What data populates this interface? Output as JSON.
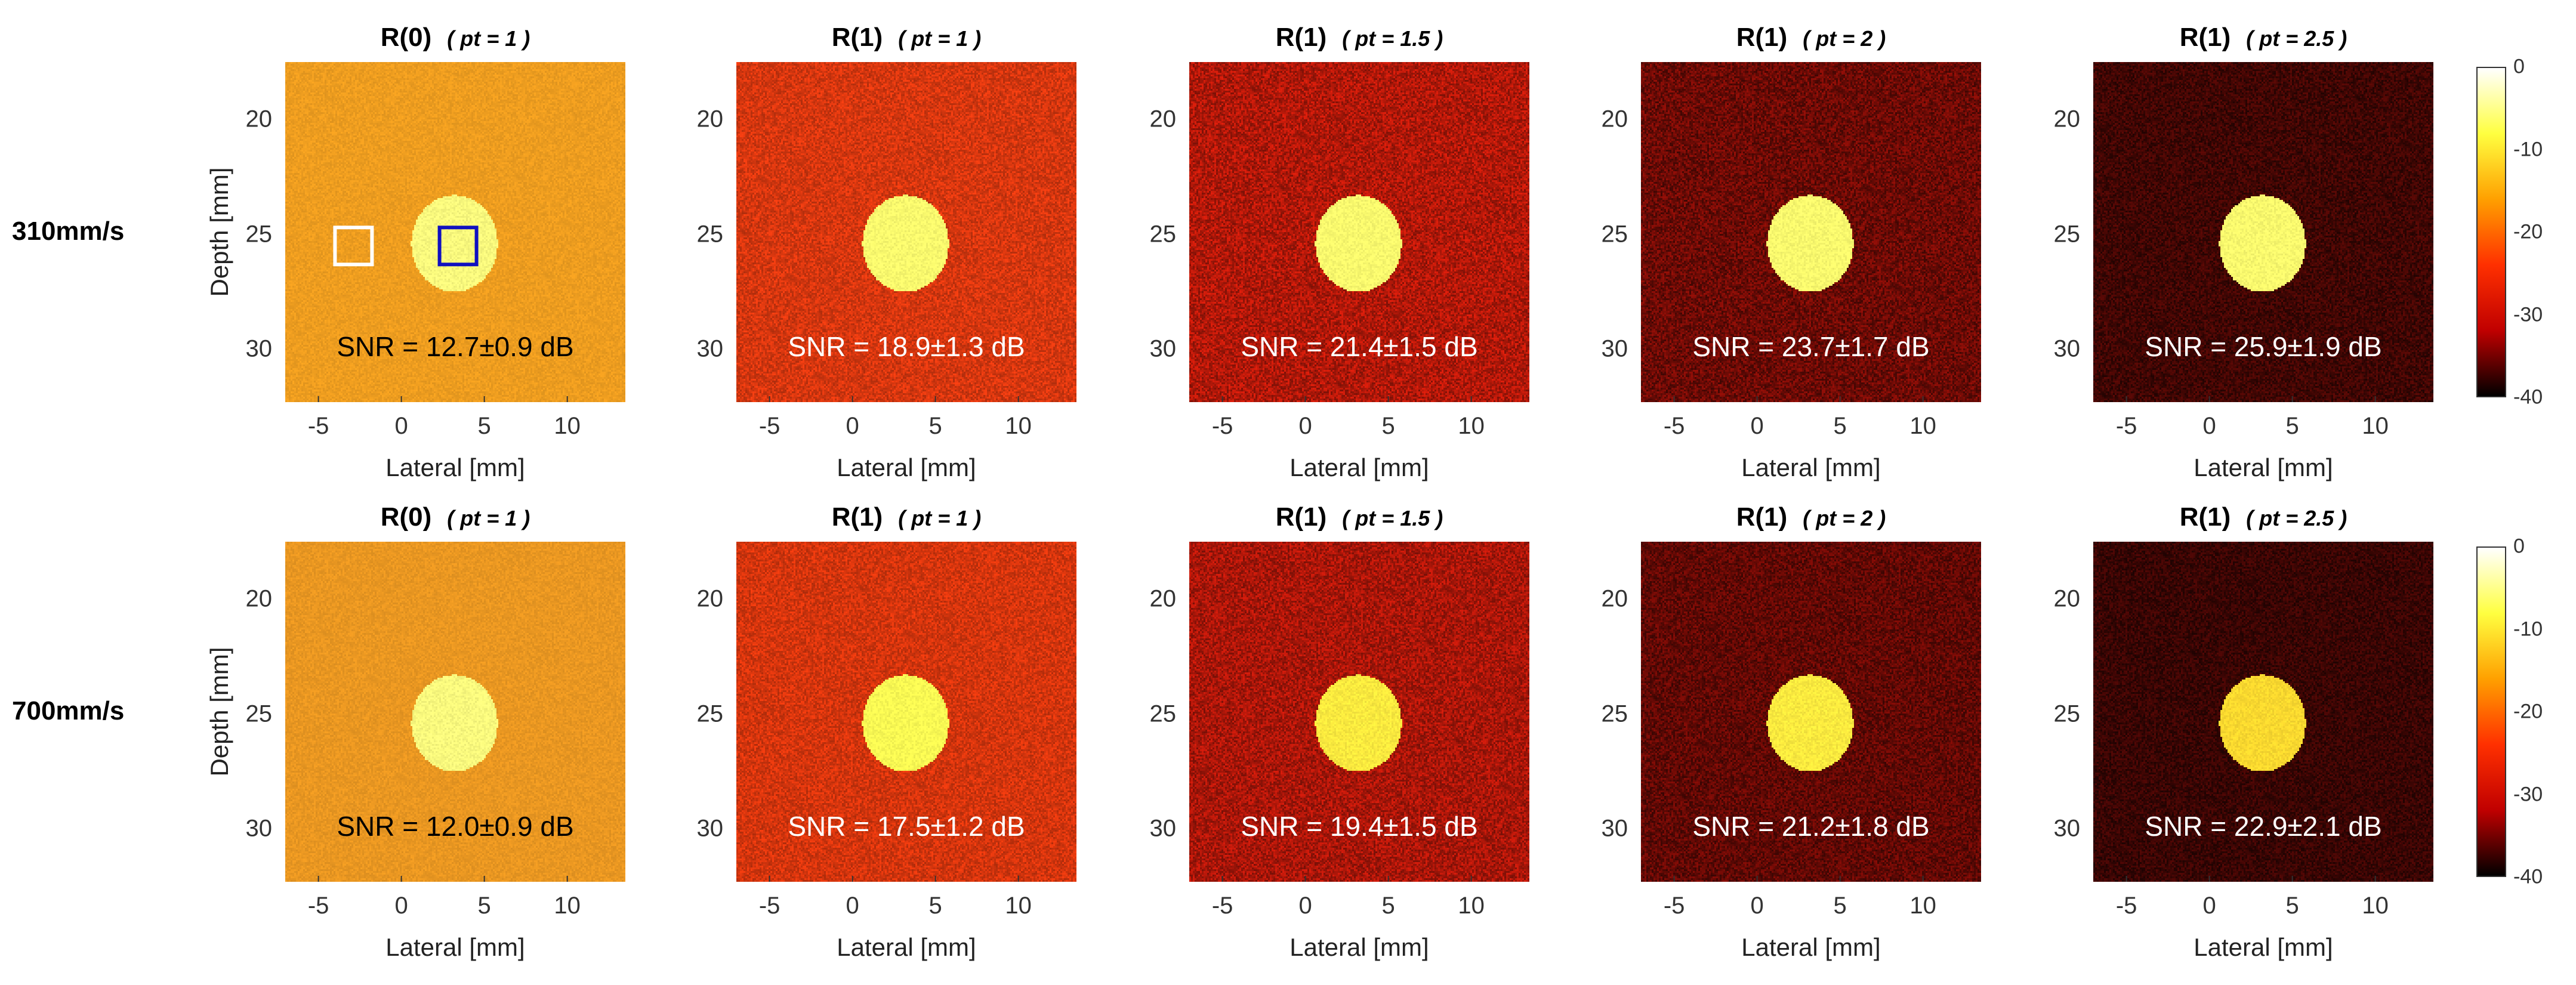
{
  "rows": [
    {
      "label": "310mm/s",
      "panels": [
        {
          "title": "R(0)",
          "pt": "( pt = 1 )",
          "snr": "SNR = 12.7±0.9 dB",
          "bg": "#f2a020",
          "noise": 0.05,
          "blob": "#ffff80"
        },
        {
          "title": "R(1)",
          "pt": "( pt = 1 )",
          "snr": "SNR = 18.9±1.3 dB",
          "bg": "#e23a10",
          "noise": 0.14,
          "blob": "#ffff70"
        },
        {
          "title": "R(1)",
          "pt": "( pt = 1.5 )",
          "snr": "SNR = 21.4±1.5 dB",
          "bg": "#c01a0a",
          "noise": 0.22,
          "blob": "#ffff70"
        },
        {
          "title": "R(1)",
          "pt": "( pt = 2 )",
          "snr": "SNR = 23.7±1.7 dB",
          "bg": "#7a0c06",
          "noise": 0.3,
          "blob": "#ffff70"
        },
        {
          "title": "R(1)",
          "pt": "( pt = 2.5 )",
          "snr": "SNR = 25.9±1.9 dB",
          "bg": "#4a0704",
          "noise": 0.34,
          "blob": "#ffff70"
        }
      ]
    },
    {
      "label": "700mm/s",
      "panels": [
        {
          "title": "R(0)",
          "pt": "( pt = 1 )",
          "snr": "SNR = 12.0±0.9 dB",
          "bg": "#ee9a22",
          "noise": 0.05,
          "blob": "#ffff80"
        },
        {
          "title": "R(1)",
          "pt": "( pt = 1 )",
          "snr": "SNR = 17.5±1.2 dB",
          "bg": "#e0380e",
          "noise": 0.14,
          "blob": "#ffff55"
        },
        {
          "title": "R(1)",
          "pt": "( pt = 1.5 )",
          "snr": "SNR = 19.4±1.5 dB",
          "bg": "#b8180a",
          "noise": 0.22,
          "blob": "#ffee40"
        },
        {
          "title": "R(1)",
          "pt": "( pt = 2 )",
          "snr": "SNR = 21.2±1.8 dB",
          "bg": "#6e0a05",
          "noise": 0.3,
          "blob": "#ffee40"
        },
        {
          "title": "R(1)",
          "pt": "( pt = 2.5 )",
          "snr": "SNR = 22.9±2.1 dB",
          "bg": "#420604",
          "noise": 0.34,
          "blob": "#ffdd30"
        }
      ]
    }
  ],
  "x_axis": {
    "label": "Lateral [mm]",
    "ticks": [
      "-5",
      "0",
      "5",
      "10"
    ],
    "range": [
      -7,
      13.5
    ]
  },
  "y_axis": {
    "label": "Depth [mm]",
    "ticks": [
      "20",
      "25",
      "30"
    ],
    "range": [
      17.5,
      32.3
    ]
  },
  "colorbar": {
    "ticks": [
      "0",
      "-10",
      "-20",
      "-30",
      "-40"
    ],
    "stops": [
      "#ffffff",
      "#ffff40",
      "#ffa000",
      "#ff3000",
      "#c00000",
      "#000000"
    ]
  },
  "roi_boxes": {
    "background_color": "#ffffff",
    "inclusion_color": "#1010c0"
  },
  "inclusion": {
    "center_x_mm": 3.2,
    "center_y_mm": 25.4,
    "radius_x_mm": 2.6,
    "radius_y_mm": 2.1
  }
}
